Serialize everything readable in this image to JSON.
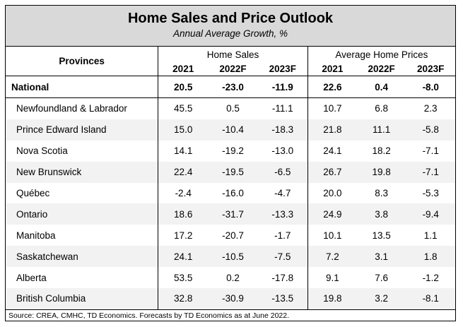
{
  "title": "Home Sales and Price Outlook",
  "subtitle": "Annual Average Growth, %",
  "headers": {
    "provinces": "Provinces",
    "home_sales": "Home Sales",
    "avg_prices": "Average Home Prices",
    "years": [
      "2021",
      "2022F",
      "2023F",
      "2021",
      "2022F",
      "2023F"
    ]
  },
  "national": {
    "name": "National",
    "values": [
      "20.5",
      "-23.0",
      "-11.9",
      "22.6",
      "0.4",
      "-8.0"
    ]
  },
  "rows": [
    {
      "name": "Newfoundland & Labrador",
      "values": [
        "45.5",
        "0.5",
        "-11.1",
        "10.7",
        "6.8",
        "2.3"
      ]
    },
    {
      "name": "Prince Edward Island",
      "values": [
        "15.0",
        "-10.4",
        "-18.3",
        "21.8",
        "11.1",
        "-5.8"
      ]
    },
    {
      "name": "Nova Scotia",
      "values": [
        "14.1",
        "-19.2",
        "-13.0",
        "24.1",
        "18.2",
        "-7.1"
      ]
    },
    {
      "name": "New Brunswick",
      "values": [
        "22.4",
        "-19.5",
        "-6.5",
        "26.7",
        "19.8",
        "-7.1"
      ]
    },
    {
      "name": "Québec",
      "values": [
        "-2.4",
        "-16.0",
        "-4.7",
        "20.0",
        "8.3",
        "-5.3"
      ]
    },
    {
      "name": "Ontario",
      "values": [
        "18.6",
        "-31.7",
        "-13.3",
        "24.9",
        "3.8",
        "-9.4"
      ]
    },
    {
      "name": "Manitoba",
      "values": [
        "17.2",
        "-20.7",
        "-1.7",
        "10.1",
        "13.5",
        "1.1"
      ]
    },
    {
      "name": "Saskatchewan",
      "values": [
        "24.1",
        "-10.5",
        "-7.5",
        "7.2",
        "3.1",
        "1.8"
      ]
    },
    {
      "name": "Alberta",
      "values": [
        "53.5",
        "0.2",
        "-17.8",
        "9.1",
        "7.6",
        "-1.2"
      ]
    },
    {
      "name": "British Columbia",
      "values": [
        "32.8",
        "-30.9",
        "-13.5",
        "19.8",
        "3.2",
        "-8.1"
      ]
    }
  ],
  "source": "Source: CREA, CMHC, TD Economics. Forecasts by TD Economics as at June 2022."
}
